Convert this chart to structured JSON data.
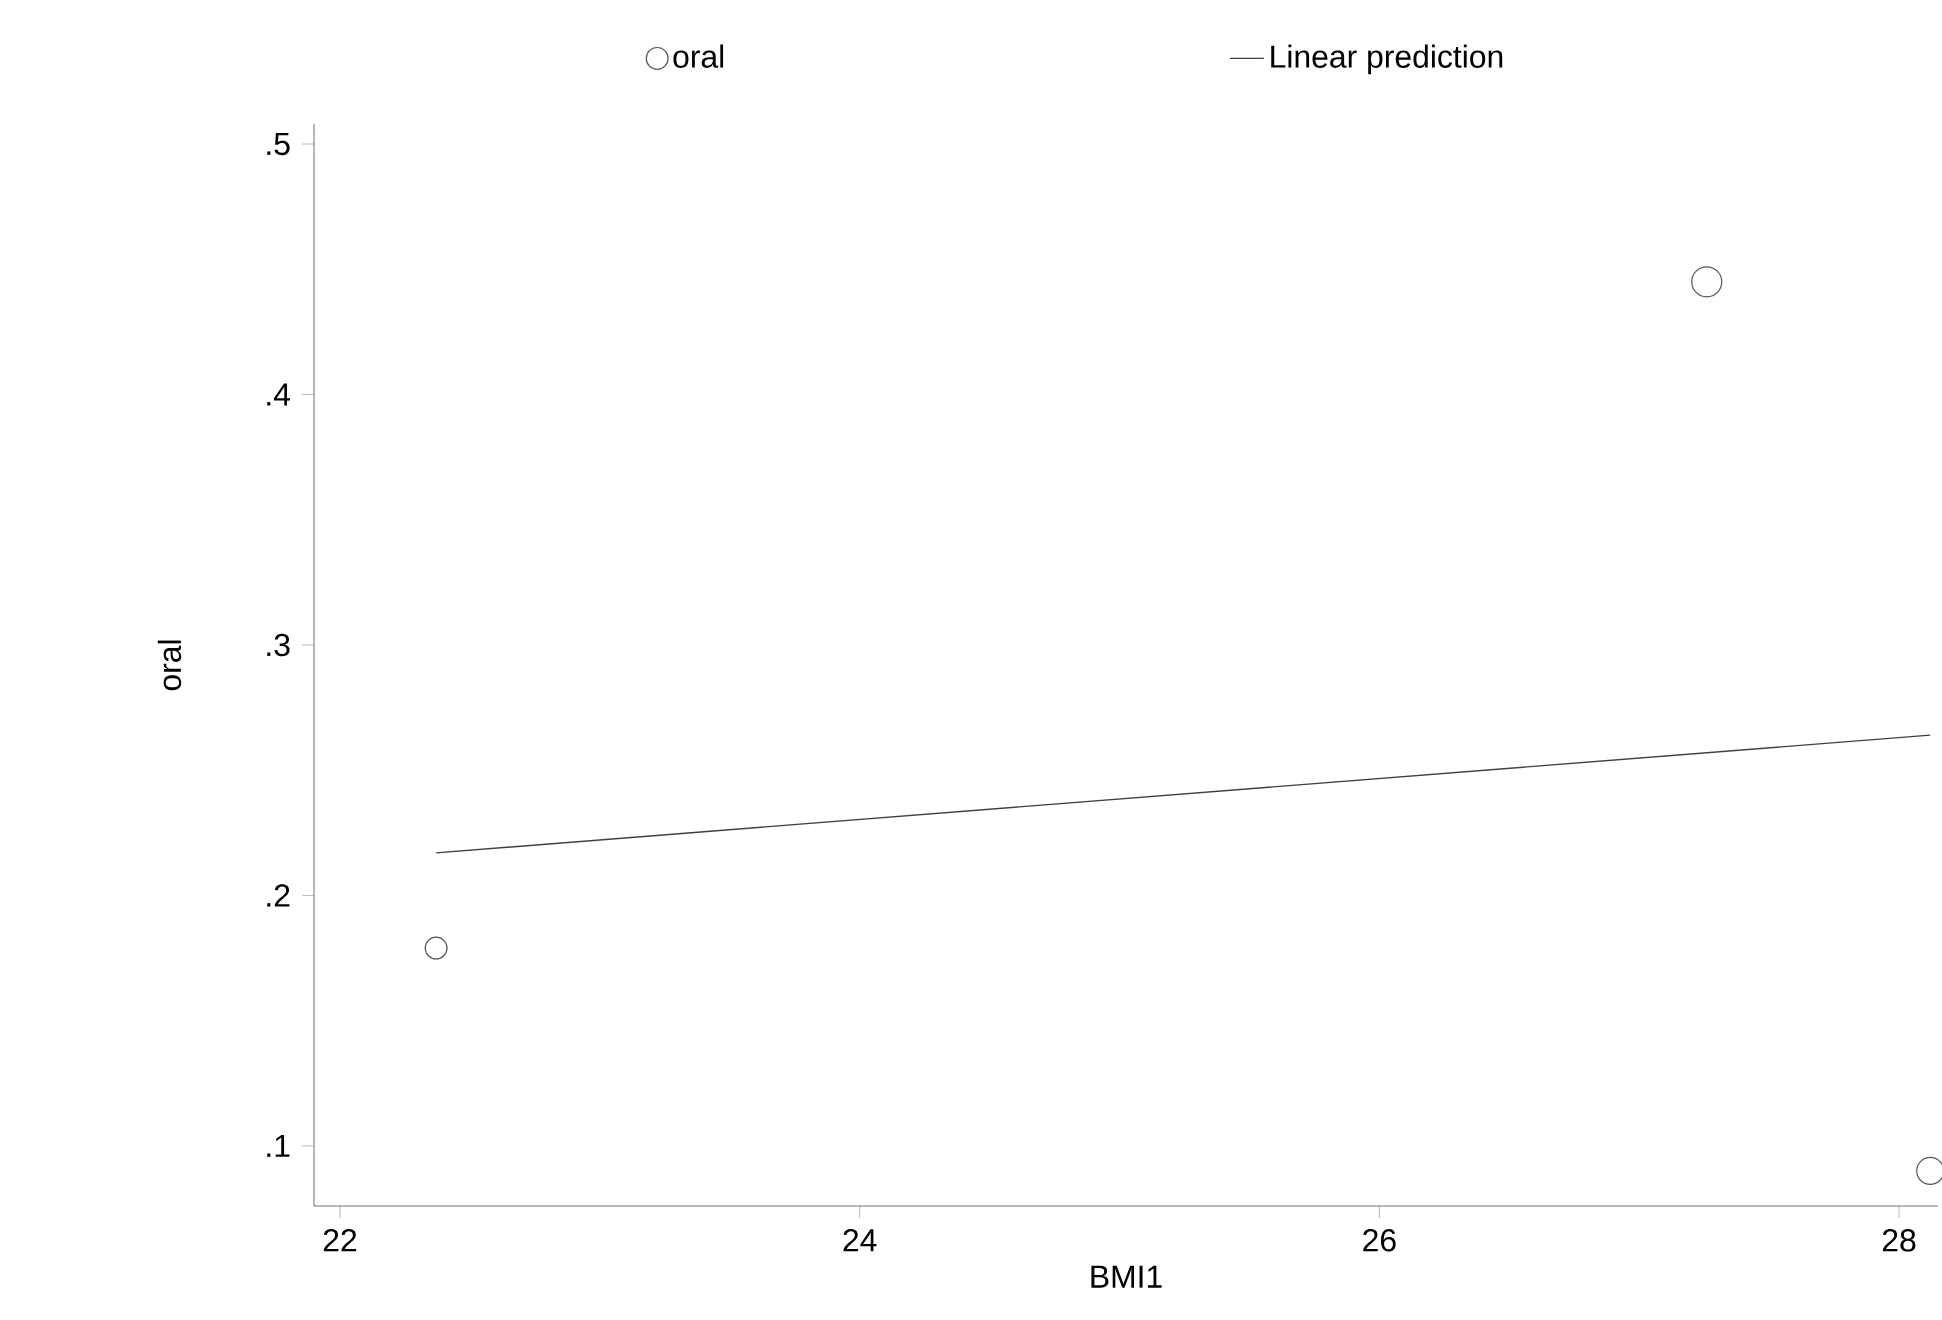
{
  "chart_data": {
    "type": "bubble",
    "xlabel": "BMI1",
    "ylabel": "oral",
    "xlim": [
      21.9,
      28.15
    ],
    "ylim": [
      0.076,
      0.508
    ],
    "xticks": [
      22,
      24,
      26,
      28
    ],
    "yticks": [
      {
        "value": 0.1,
        "label": ".1"
      },
      {
        "value": 0.2,
        "label": ".2"
      },
      {
        "value": 0.3,
        "label": ".3"
      },
      {
        "value": 0.4,
        "label": ".4"
      },
      {
        "value": 0.5,
        "label": ".5"
      }
    ],
    "legend": "top",
    "series": [
      {
        "name": "oral",
        "marker": "circle",
        "color": "#555555",
        "x": [
          22.37,
          27.26,
          28.12
        ],
        "values": [
          0.179,
          0.445,
          0.09
        ],
        "sizes": [
          0.53,
          1,
          0.81
        ]
      },
      {
        "name": "Linear prediction",
        "type": "line",
        "marker": "none",
        "line_style": "solid",
        "color": "#404040",
        "x": [
          22.37,
          28.12
        ],
        "values": [
          0.217,
          0.264
        ]
      }
    ]
  }
}
